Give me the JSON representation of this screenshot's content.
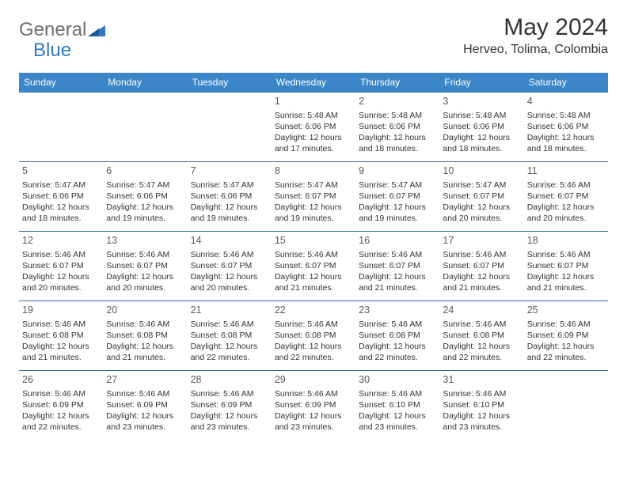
{
  "logo": {
    "general": "General",
    "blue": "Blue"
  },
  "title": "May 2024",
  "location": "Herveo, Tolima, Colombia",
  "colors": {
    "header_bg": "#3a86c8",
    "header_text": "#ffffff",
    "row_border": "#2e6da4",
    "logo_gray": "#6f6f6f",
    "logo_blue": "#2f7ac0",
    "text": "#333333"
  },
  "weekdays": [
    "Sunday",
    "Monday",
    "Tuesday",
    "Wednesday",
    "Thursday",
    "Friday",
    "Saturday"
  ],
  "weeks": [
    [
      null,
      null,
      null,
      {
        "d": "1",
        "sr": "5:48 AM",
        "ss": "6:06 PM",
        "dl": "12 hours and 17 minutes."
      },
      {
        "d": "2",
        "sr": "5:48 AM",
        "ss": "6:06 PM",
        "dl": "12 hours and 18 minutes."
      },
      {
        "d": "3",
        "sr": "5:48 AM",
        "ss": "6:06 PM",
        "dl": "12 hours and 18 minutes."
      },
      {
        "d": "4",
        "sr": "5:48 AM",
        "ss": "6:06 PM",
        "dl": "12 hours and 18 minutes."
      }
    ],
    [
      {
        "d": "5",
        "sr": "5:47 AM",
        "ss": "6:06 PM",
        "dl": "12 hours and 18 minutes."
      },
      {
        "d": "6",
        "sr": "5:47 AM",
        "ss": "6:06 PM",
        "dl": "12 hours and 19 minutes."
      },
      {
        "d": "7",
        "sr": "5:47 AM",
        "ss": "6:06 PM",
        "dl": "12 hours and 19 minutes."
      },
      {
        "d": "8",
        "sr": "5:47 AM",
        "ss": "6:07 PM",
        "dl": "12 hours and 19 minutes."
      },
      {
        "d": "9",
        "sr": "5:47 AM",
        "ss": "6:07 PM",
        "dl": "12 hours and 19 minutes."
      },
      {
        "d": "10",
        "sr": "5:47 AM",
        "ss": "6:07 PM",
        "dl": "12 hours and 20 minutes."
      },
      {
        "d": "11",
        "sr": "5:46 AM",
        "ss": "6:07 PM",
        "dl": "12 hours and 20 minutes."
      }
    ],
    [
      {
        "d": "12",
        "sr": "5:46 AM",
        "ss": "6:07 PM",
        "dl": "12 hours and 20 minutes."
      },
      {
        "d": "13",
        "sr": "5:46 AM",
        "ss": "6:07 PM",
        "dl": "12 hours and 20 minutes."
      },
      {
        "d": "14",
        "sr": "5:46 AM",
        "ss": "6:07 PM",
        "dl": "12 hours and 20 minutes."
      },
      {
        "d": "15",
        "sr": "5:46 AM",
        "ss": "6:07 PM",
        "dl": "12 hours and 21 minutes."
      },
      {
        "d": "16",
        "sr": "5:46 AM",
        "ss": "6:07 PM",
        "dl": "12 hours and 21 minutes."
      },
      {
        "d": "17",
        "sr": "5:46 AM",
        "ss": "6:07 PM",
        "dl": "12 hours and 21 minutes."
      },
      {
        "d": "18",
        "sr": "5:46 AM",
        "ss": "6:07 PM",
        "dl": "12 hours and 21 minutes."
      }
    ],
    [
      {
        "d": "19",
        "sr": "5:46 AM",
        "ss": "6:08 PM",
        "dl": "12 hours and 21 minutes."
      },
      {
        "d": "20",
        "sr": "5:46 AM",
        "ss": "6:08 PM",
        "dl": "12 hours and 21 minutes."
      },
      {
        "d": "21",
        "sr": "5:46 AM",
        "ss": "6:08 PM",
        "dl": "12 hours and 22 minutes."
      },
      {
        "d": "22",
        "sr": "5:46 AM",
        "ss": "6:08 PM",
        "dl": "12 hours and 22 minutes."
      },
      {
        "d": "23",
        "sr": "5:46 AM",
        "ss": "6:08 PM",
        "dl": "12 hours and 22 minutes."
      },
      {
        "d": "24",
        "sr": "5:46 AM",
        "ss": "6:08 PM",
        "dl": "12 hours and 22 minutes."
      },
      {
        "d": "25",
        "sr": "5:46 AM",
        "ss": "6:09 PM",
        "dl": "12 hours and 22 minutes."
      }
    ],
    [
      {
        "d": "26",
        "sr": "5:46 AM",
        "ss": "6:09 PM",
        "dl": "12 hours and 22 minutes."
      },
      {
        "d": "27",
        "sr": "5:46 AM",
        "ss": "6:09 PM",
        "dl": "12 hours and 23 minutes."
      },
      {
        "d": "28",
        "sr": "5:46 AM",
        "ss": "6:09 PM",
        "dl": "12 hours and 23 minutes."
      },
      {
        "d": "29",
        "sr": "5:46 AM",
        "ss": "6:09 PM",
        "dl": "12 hours and 23 minutes."
      },
      {
        "d": "30",
        "sr": "5:46 AM",
        "ss": "6:10 PM",
        "dl": "12 hours and 23 minutes."
      },
      {
        "d": "31",
        "sr": "5:46 AM",
        "ss": "6:10 PM",
        "dl": "12 hours and 23 minutes."
      },
      null
    ]
  ],
  "labels": {
    "sunrise": "Sunrise: ",
    "sunset": "Sunset: ",
    "daylight": "Daylight: "
  }
}
